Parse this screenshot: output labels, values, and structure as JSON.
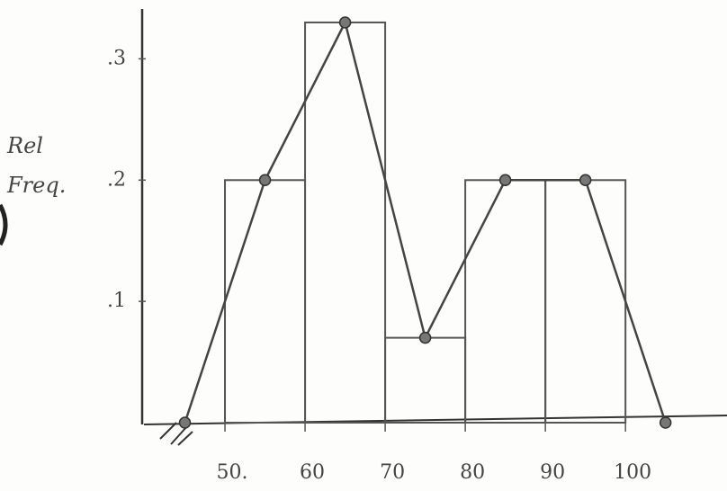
{
  "chart_data": {
    "type": "histogram",
    "y_label": "Rel Freq.",
    "bins": [
      50,
      60,
      70,
      80,
      90,
      100
    ],
    "values": [
      0.2,
      0.33,
      0.07,
      0.2,
      0.2
    ],
    "frequency_polygon": {
      "x": [
        45,
        55,
        65,
        75,
        85,
        95,
        105
      ],
      "values": [
        0,
        0.2,
        0.33,
        0.07,
        0.2,
        0.2,
        0
      ]
    },
    "xlim": [
      40,
      112
    ],
    "ylim": [
      0,
      0.35
    ],
    "xticks": [
      {
        "value": 50,
        "label": "50."
      },
      60,
      70,
      80,
      90,
      100
    ],
    "yticks": [
      {
        "value": 0.1,
        "label": ".1"
      },
      {
        "value": 0.2,
        "label": ".2"
      },
      {
        "value": 0.3,
        "label": ".3"
      }
    ],
    "color": "#555555"
  }
}
